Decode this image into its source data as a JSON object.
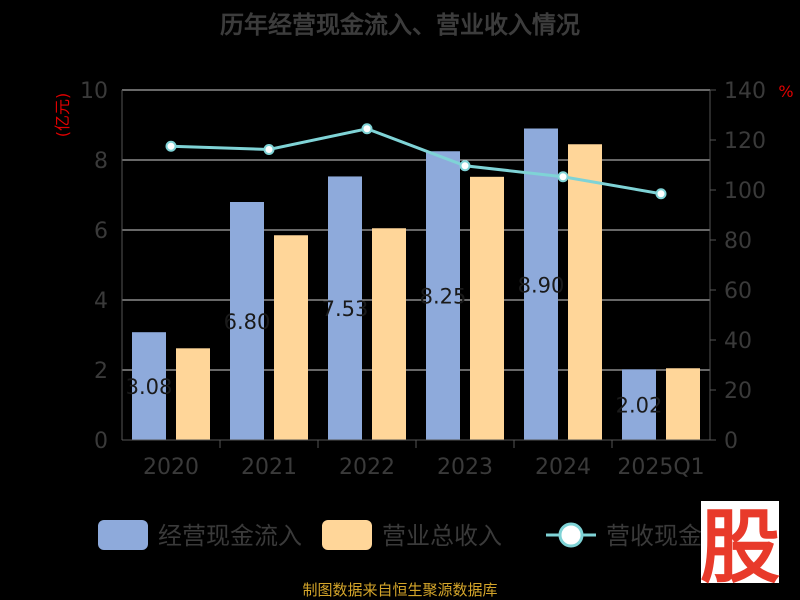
{
  "chart_data": {
    "type": "bar",
    "title": "历年经营现金流入、营业收入情况",
    "categories": [
      "2020",
      "2021",
      "2022",
      "2023",
      "2024",
      "2025Q1"
    ],
    "series": [
      {
        "name": "经营现金流入",
        "kind": "bar",
        "axis": "left",
        "color": "#8eaadb",
        "values": [
          3.08,
          6.8,
          7.53,
          8.25,
          8.9,
          2.02
        ],
        "labels": [
          "3.08",
          "6.80",
          "7.53",
          "8.25",
          "8.90",
          "2.02"
        ]
      },
      {
        "name": "营业总收入",
        "kind": "bar",
        "axis": "left",
        "color": "#ffd699",
        "values": [
          2.62,
          5.85,
          6.05,
          7.52,
          8.45,
          2.05
        ]
      },
      {
        "name": "营收现金比",
        "kind": "line",
        "axis": "right",
        "color": "#7fd3d6",
        "values": [
          117.5,
          116.2,
          124.5,
          109.7,
          105.3,
          98.5
        ]
      }
    ],
    "y_left": {
      "label": "(亿元)",
      "min": 0,
      "max": 10,
      "ticks": [
        0,
        2,
        4,
        6,
        8,
        10
      ]
    },
    "y_right": {
      "label": "%",
      "min": 0,
      "max": 140,
      "ticks": [
        0,
        20,
        40,
        60,
        80,
        100,
        120,
        140
      ]
    },
    "grid": true,
    "legend_position": "bottom"
  },
  "footer": "制图数据来自恒生聚源数据库",
  "logo": {
    "text": "股",
    "color": "#e83a2a"
  }
}
